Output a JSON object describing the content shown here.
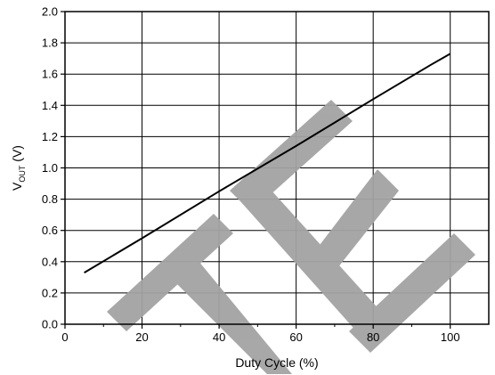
{
  "chart_data": {
    "type": "line",
    "title": "",
    "xlabel": "Duty Cycle (%)",
    "ylabel_main": "V",
    "ylabel_sub": "OUT",
    "ylabel_unit": " (V)",
    "xlim": [
      0,
      110
    ],
    "ylim": [
      0.0,
      2.0
    ],
    "xticks": [
      0,
      20,
      40,
      60,
      80,
      100
    ],
    "xtick_labels": [
      "0",
      "20",
      "40",
      "60",
      "80",
      "100"
    ],
    "yticks": [
      0.0,
      0.2,
      0.4,
      0.6,
      0.8,
      1.0,
      1.2,
      1.4,
      1.6,
      1.8,
      2.0
    ],
    "ytick_labels": [
      "0.0",
      "0.2",
      "0.4",
      "0.6",
      "0.8",
      "1.0",
      "1.2",
      "1.4",
      "1.6",
      "1.8",
      "2.0"
    ],
    "grid": true,
    "series": [
      {
        "x": [
          5,
          20,
          40,
          60,
          80,
          95,
          100
        ],
        "y": [
          0.33,
          0.55,
          0.85,
          1.14,
          1.44,
          1.66,
          1.73
        ]
      }
    ],
    "colors": {
      "line": "#000000",
      "grid": "#000000",
      "watermark": "#9e9e9e"
    }
  }
}
